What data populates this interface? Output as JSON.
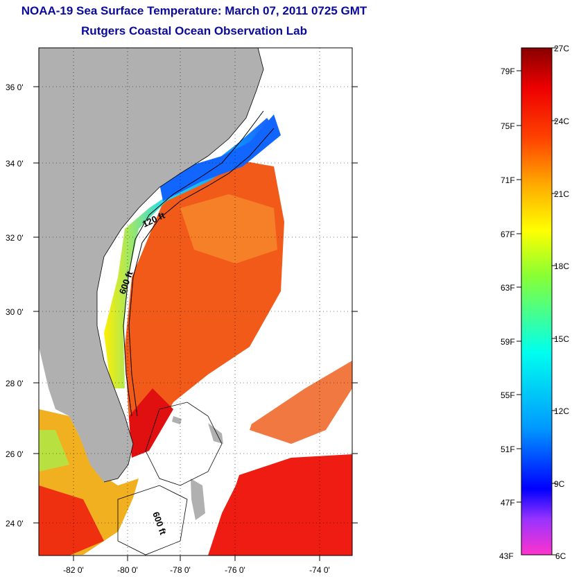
{
  "title": "NOAA-19 Sea Surface Temperature:  March 07, 2011 0725 GMT",
  "subtitle": "Rutgers Coastal Ocean Observation Lab",
  "map": {
    "lat_labels": [
      "36 0'",
      "34 0'",
      "32 0'",
      "30 0'",
      "28 0'",
      "26 0'",
      "24 0'"
    ],
    "lon_labels": [
      "-82 0'",
      "-80 0'",
      "-78 0'",
      "-76 0'",
      "-74 0'"
    ],
    "contours": [
      "120 ft",
      "600 ft",
      "600 ft"
    ],
    "land_color": "#b0b0b0",
    "cloud_color": "#ffffff"
  },
  "colorbar": {
    "fahrenheit": [
      "79F",
      "75F",
      "71F",
      "67F",
      "63F",
      "59F",
      "55F",
      "51F",
      "47F",
      "43F"
    ],
    "celsius": [
      "27C",
      "24C",
      "21C",
      "18C",
      "15C",
      "12C",
      "9C",
      "6C"
    ],
    "range_c": [
      6,
      27
    ]
  }
}
